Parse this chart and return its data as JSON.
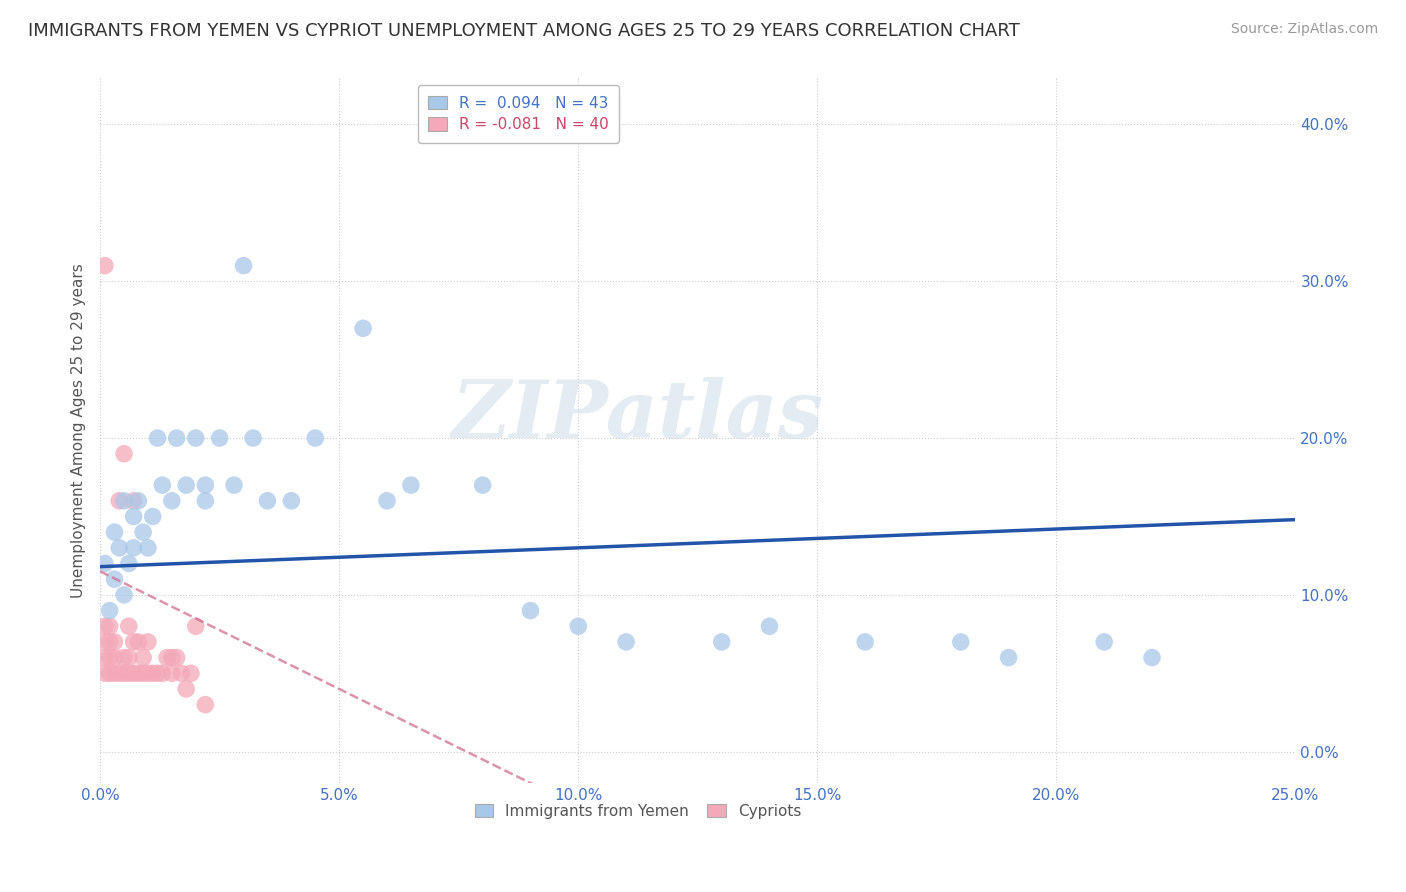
{
  "title": "IMMIGRANTS FROM YEMEN VS CYPRIOT UNEMPLOYMENT AMONG AGES 25 TO 29 YEARS CORRELATION CHART",
  "source": "Source: ZipAtlas.com",
  "ylabel": "Unemployment Among Ages 25 to 29 years",
  "xlim": [
    0,
    0.25
  ],
  "ylim": [
    -0.02,
    0.43
  ],
  "xticks": [
    0.0,
    0.05,
    0.1,
    0.15,
    0.2,
    0.25
  ],
  "yticks": [
    0.0,
    0.1,
    0.2,
    0.3,
    0.4
  ],
  "xticklabels": [
    "0.0%",
    "5.0%",
    "10.0%",
    "15.0%",
    "20.0%",
    "25.0%"
  ],
  "yticklabels": [
    "0.0%",
    "10.0%",
    "20.0%",
    "30.0%",
    "40.0%"
  ],
  "legend_blue_label": "R =  0.094   N = 43",
  "legend_pink_label": "R = -0.081   N = 40",
  "blue_color": "#a8c8e8",
  "pink_color": "#f4a8b8",
  "blue_line_color": "#2255aa",
  "pink_line_color": "#cc6688",
  "watermark": "ZIPatlas",
  "blue_scatter_x": [
    0.001,
    0.002,
    0.003,
    0.003,
    0.004,
    0.005,
    0.005,
    0.006,
    0.007,
    0.007,
    0.008,
    0.009,
    0.01,
    0.011,
    0.012,
    0.013,
    0.015,
    0.016,
    0.018,
    0.02,
    0.022,
    0.022,
    0.025,
    0.028,
    0.03,
    0.032,
    0.035,
    0.04,
    0.045,
    0.055,
    0.06,
    0.065,
    0.08,
    0.09,
    0.1,
    0.11,
    0.13,
    0.14,
    0.16,
    0.18,
    0.19,
    0.21,
    0.22
  ],
  "blue_scatter_y": [
    0.12,
    0.09,
    0.11,
    0.14,
    0.13,
    0.1,
    0.16,
    0.12,
    0.15,
    0.13,
    0.16,
    0.14,
    0.13,
    0.15,
    0.2,
    0.17,
    0.16,
    0.2,
    0.17,
    0.2,
    0.16,
    0.17,
    0.2,
    0.17,
    0.31,
    0.2,
    0.16,
    0.16,
    0.2,
    0.27,
    0.16,
    0.17,
    0.17,
    0.09,
    0.08,
    0.07,
    0.07,
    0.08,
    0.07,
    0.07,
    0.06,
    0.07,
    0.06
  ],
  "pink_scatter_x": [
    0.001,
    0.001,
    0.001,
    0.001,
    0.002,
    0.002,
    0.002,
    0.002,
    0.003,
    0.003,
    0.003,
    0.004,
    0.004,
    0.005,
    0.005,
    0.005,
    0.006,
    0.006,
    0.006,
    0.007,
    0.007,
    0.007,
    0.008,
    0.008,
    0.009,
    0.009,
    0.01,
    0.01,
    0.011,
    0.012,
    0.013,
    0.014,
    0.015,
    0.015,
    0.016,
    0.017,
    0.018,
    0.019,
    0.02,
    0.022
  ],
  "pink_scatter_y": [
    0.05,
    0.06,
    0.07,
    0.08,
    0.05,
    0.06,
    0.07,
    0.08,
    0.05,
    0.06,
    0.07,
    0.05,
    0.16,
    0.05,
    0.06,
    0.19,
    0.05,
    0.06,
    0.08,
    0.05,
    0.07,
    0.16,
    0.05,
    0.07,
    0.05,
    0.06,
    0.05,
    0.07,
    0.05,
    0.05,
    0.05,
    0.06,
    0.05,
    0.06,
    0.06,
    0.05,
    0.04,
    0.05,
    0.08,
    0.03
  ],
  "pink_outlier_x": [
    0.001
  ],
  "pink_outlier_y": [
    0.31
  ],
  "grid_color": "#cccccc",
  "background_color": "#ffffff",
  "title_fontsize": 13,
  "axis_label_fontsize": 11,
  "tick_fontsize": 11,
  "legend_fontsize": 11,
  "source_fontsize": 10,
  "blue_trend_intercept": 0.118,
  "blue_trend_slope": 0.12,
  "pink_trend_intercept": 0.115,
  "pink_trend_slope": -1.5
}
